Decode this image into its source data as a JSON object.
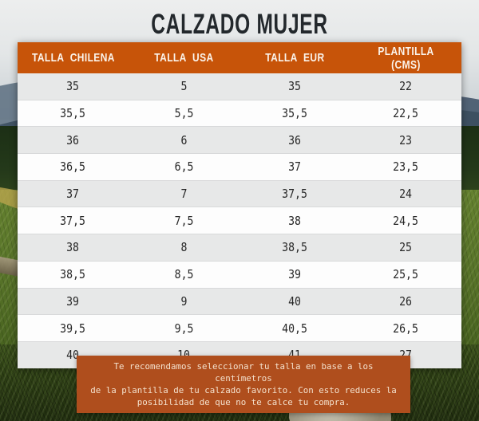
{
  "page": {
    "title": "CALZADO MUJER"
  },
  "chart_data": {
    "type": "table",
    "title": "CALZADO MUJER",
    "columns": [
      "TALLA CHILENA",
      "TALLA USA",
      "TALLA EUR",
      "PLANTILLA (CMS)"
    ],
    "rows": [
      [
        "35",
        "5",
        "35",
        "22"
      ],
      [
        "35,5",
        "5,5",
        "35,5",
        "22,5"
      ],
      [
        "36",
        "6",
        "36",
        "23"
      ],
      [
        "36,5",
        "6,5",
        "37",
        "23,5"
      ],
      [
        "37",
        "7",
        "37,5",
        "24"
      ],
      [
        "37,5",
        "7,5",
        "38",
        "24,5"
      ],
      [
        "38",
        "8",
        "38,5",
        "25"
      ],
      [
        "38,5",
        "8,5",
        "39",
        "25,5"
      ],
      [
        "39",
        "9",
        "40",
        "26"
      ],
      [
        "39,5",
        "9,5",
        "40,5",
        "26,5"
      ],
      [
        "40",
        "10",
        "41",
        "27"
      ]
    ]
  },
  "note": {
    "text": "Te recomendamos seleccionar tu talla en base a los centímetros\nde la plantilla de tu calzado favorito. Con esto reduces la\nposibilidad de que no te calce tu compra."
  },
  "colors": {
    "header_orange": "#C75409",
    "note_orange": "#AF4E1D",
    "row_gray": "#E7E8E8",
    "row_white": "#FDFDFD",
    "title_text": "#23282C"
  }
}
